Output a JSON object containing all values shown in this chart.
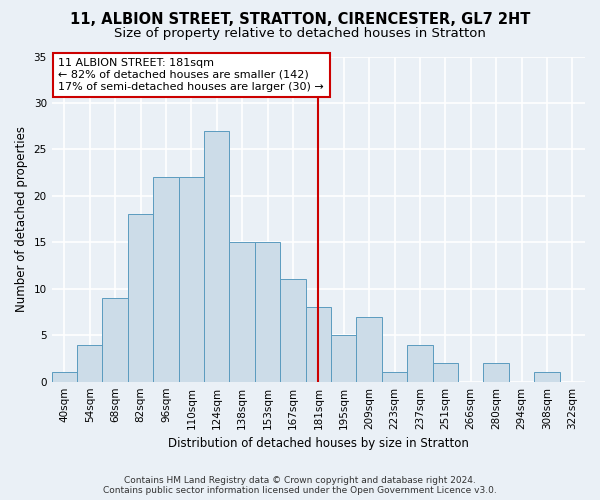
{
  "title_line1": "11, ALBION STREET, STRATTON, CIRENCESTER, GL7 2HT",
  "title_line2": "Size of property relative to detached houses in Stratton",
  "xlabel": "Distribution of detached houses by size in Stratton",
  "ylabel": "Number of detached properties",
  "footnote1": "Contains HM Land Registry data © Crown copyright and database right 2024.",
  "footnote2": "Contains public sector information licensed under the Open Government Licence v3.0.",
  "bar_labels": [
    "40sqm",
    "54sqm",
    "68sqm",
    "82sqm",
    "96sqm",
    "110sqm",
    "124sqm",
    "138sqm",
    "153sqm",
    "167sqm",
    "181sqm",
    "195sqm",
    "209sqm",
    "223sqm",
    "237sqm",
    "251sqm",
    "266sqm",
    "280sqm",
    "294sqm",
    "308sqm",
    "322sqm"
  ],
  "bar_values": [
    1,
    4,
    9,
    18,
    22,
    22,
    27,
    15,
    15,
    11,
    8,
    5,
    7,
    1,
    4,
    2,
    0,
    2,
    0,
    1,
    0
  ],
  "bar_color": "#ccdce8",
  "bar_edge_color": "#5b9bbf",
  "vline_x_idx": 10,
  "vline_color": "#cc0000",
  "annotation_text": "11 ALBION STREET: 181sqm\n← 82% of detached houses are smaller (142)\n17% of semi-detached houses are larger (30) →",
  "annotation_box_color": "#ffffff",
  "annotation_box_edge": "#cc0000",
  "ylim": [
    0,
    35
  ],
  "yticks": [
    0,
    5,
    10,
    15,
    20,
    25,
    30,
    35
  ],
  "background_color": "#eaf0f6",
  "grid_color": "#ffffff",
  "title_fontsize": 10.5,
  "subtitle_fontsize": 9.5,
  "axis_label_fontsize": 8.5,
  "tick_fontsize": 7.5,
  "annotation_fontsize": 8,
  "footnote_fontsize": 6.5
}
